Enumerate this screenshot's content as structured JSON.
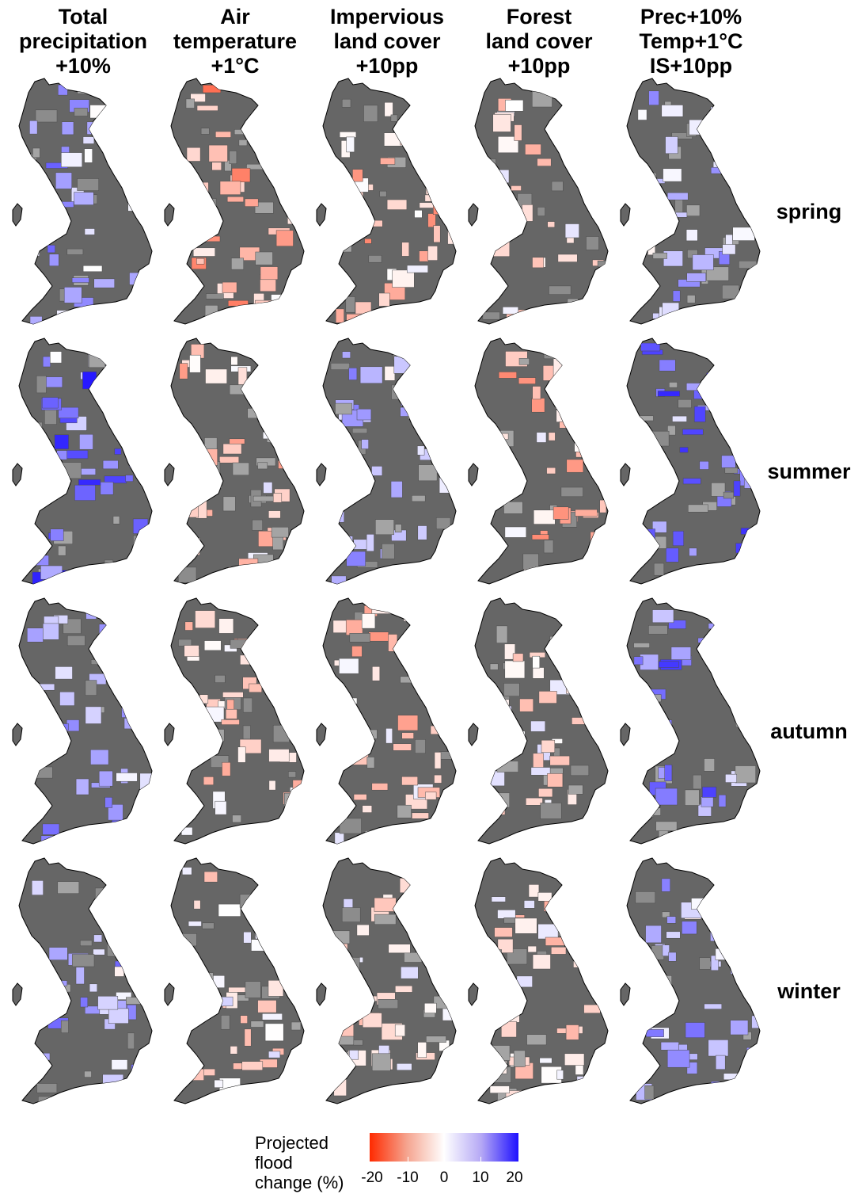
{
  "columns": [
    {
      "line1": "Total",
      "line2": "precipitation",
      "line3": "+10%"
    },
    {
      "line1": "Air",
      "line2": "temperature",
      "line3": "+1°C"
    },
    {
      "line1": "Impervious",
      "line2": "land cover",
      "line3": "+10pp"
    },
    {
      "line1": "Forest",
      "line2": "land cover",
      "line3": "+10pp"
    },
    {
      "line1": "Prec+10%",
      "line2": "Temp+1°C",
      "line3": "IS+10pp"
    }
  ],
  "rows": [
    "spring",
    "summer",
    "autumn",
    "winter"
  ],
  "legend": {
    "title_line1": "Projected",
    "title_line2": "flood",
    "title_line3": "change (%)",
    "ticks": [
      "-20",
      "-10",
      "0",
      "10",
      "20"
    ],
    "colors": {
      "low": "#ff2a00",
      "mid": "#ffffff",
      "high": "#1e10ff",
      "land": "#666666"
    }
  }
}
